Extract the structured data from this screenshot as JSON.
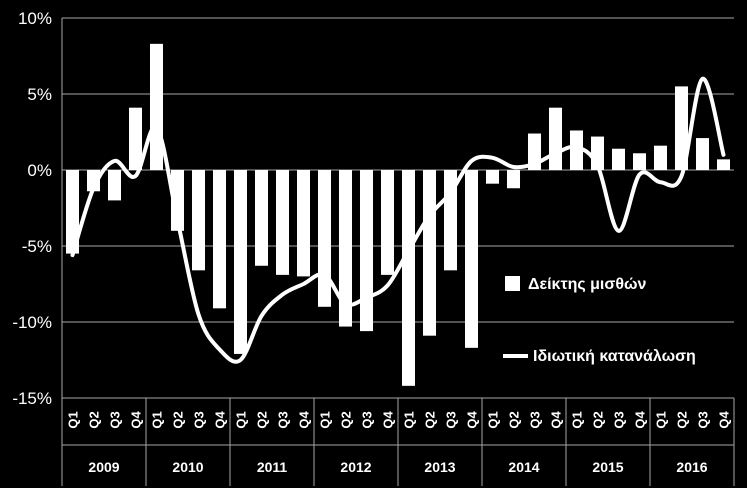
{
  "chart_data": {
    "type": "bar",
    "ylim": [
      -15,
      10
    ],
    "y_ticks": [
      "10%",
      "5%",
      "0%",
      "-5%",
      "-10%",
      "-15%"
    ],
    "grid": true,
    "legend_position": "right",
    "years": [
      "2009",
      "2010",
      "2011",
      "2012",
      "2013",
      "2014",
      "2015",
      "2016"
    ],
    "quarters": [
      "Q1",
      "Q2",
      "Q3",
      "Q4"
    ],
    "categories": [
      "2009 Q1",
      "2009 Q2",
      "2009 Q3",
      "2009 Q4",
      "2010 Q1",
      "2010 Q2",
      "2010 Q3",
      "2010 Q4",
      "2011 Q1",
      "2011 Q2",
      "2011 Q3",
      "2011 Q4",
      "2012 Q1",
      "2012 Q2",
      "2012 Q3",
      "2012 Q4",
      "2013 Q1",
      "2013 Q2",
      "2013 Q3",
      "2013 Q4",
      "2014 Q1",
      "2014 Q2",
      "2014 Q3",
      "2014 Q4",
      "2015 Q1",
      "2015 Q2",
      "2015 Q3",
      "2015 Q4",
      "2016 Q1",
      "2016 Q2",
      "2016 Q3",
      "2016 Q4"
    ],
    "series": [
      {
        "name": "Δείκτης μισθών",
        "type": "bar",
        "color": "#ffffff",
        "values": [
          -5.5,
          -1.4,
          -2.0,
          4.1,
          8.3,
          -4.0,
          -6.6,
          -9.1,
          -12.1,
          -6.3,
          -6.9,
          -7.0,
          -9.0,
          -10.3,
          -10.6,
          -6.9,
          -14.2,
          -10.9,
          -6.6,
          -11.7,
          -0.9,
          -1.2,
          2.4,
          4.1,
          2.6,
          2.2,
          1.4,
          1.1,
          1.6,
          5.5,
          2.1,
          0.7
        ]
      },
      {
        "name": "Ιδιωτική κατανάλωση",
        "type": "line",
        "color": "#ffffff",
        "values": [
          -5.6,
          -1.2,
          0.6,
          -0.4,
          2.8,
          -3.3,
          -9.5,
          -11.8,
          -12.5,
          -9.6,
          -8.2,
          -7.5,
          -6.9,
          -8.8,
          -8.4,
          -7.6,
          -5.3,
          -3.0,
          -1.5,
          0.6,
          0.8,
          0.2,
          0.4,
          1.1,
          1.5,
          0.3,
          -4.0,
          -0.3,
          -0.8,
          -0.4,
          6.0,
          1.0
        ]
      }
    ]
  }
}
